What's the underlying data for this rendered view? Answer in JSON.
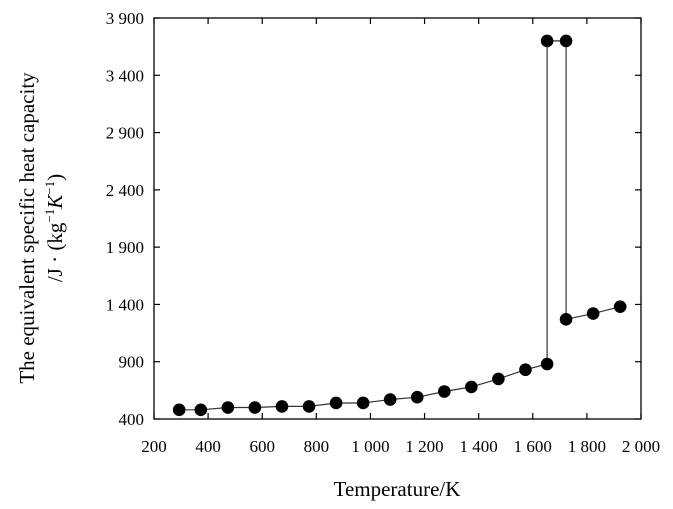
{
  "chart_data": {
    "type": "line",
    "xlabel": "Temperature/K",
    "ylabel_line1": "The equivalent specific heat capacity",
    "ylabel_line2_prefix": "/J · (kg",
    "ylabel_sup1": "−1",
    "ylabel_mid": "K",
    "ylabel_sup2": "−1",
    "ylabel_end": ")",
    "xlim": [
      200,
      2000
    ],
    "ylim": [
      400,
      3900
    ],
    "xticks": [
      200,
      400,
      600,
      800,
      1000,
      1200,
      1400,
      1600,
      1800,
      2000
    ],
    "xtick_labels": [
      "200",
      "400",
      "600",
      "800",
      "1 000",
      "1 200",
      "1 400",
      "1 600",
      "1 800",
      "2 000"
    ],
    "yticks": [
      400,
      900,
      1400,
      1900,
      2400,
      2900,
      3400,
      3900
    ],
    "ytick_labels": [
      "400",
      "900",
      "1 400",
      "1 900",
      "2 400",
      "2 900",
      "3 400",
      "3 900"
    ],
    "grid": false,
    "series": [
      {
        "x": [
          293,
          373,
          473,
          573,
          673,
          773,
          873,
          973,
          1073,
          1173,
          1273,
          1373,
          1473,
          1573,
          1653,
          1653,
          1723,
          1723,
          1823,
          1923
        ],
        "y": [
          480,
          480,
          500,
          500,
          510,
          510,
          540,
          540,
          570,
          590,
          640,
          680,
          750,
          830,
          880,
          3700,
          3700,
          1270,
          1320,
          1380
        ]
      }
    ]
  }
}
